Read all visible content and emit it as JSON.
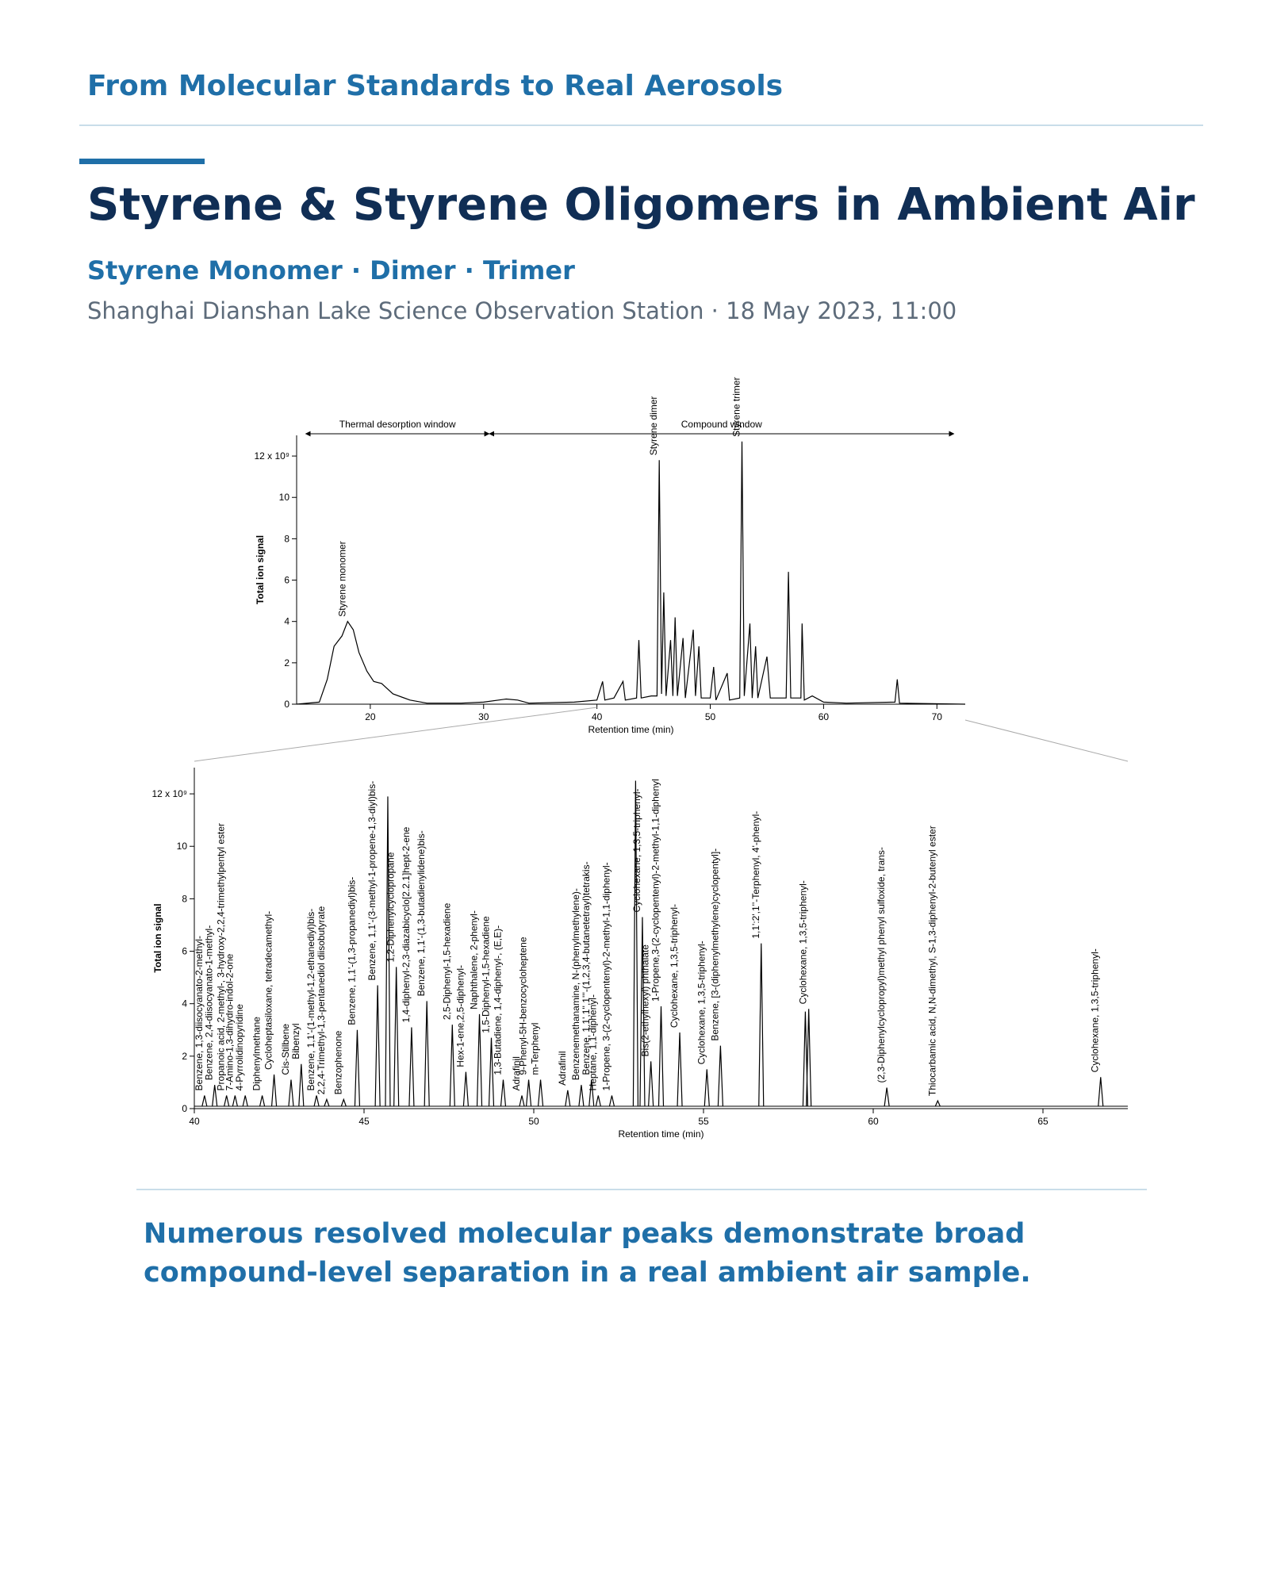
{
  "header": {
    "kicker": "From Molecular Standards to Real Aerosols",
    "title": "Styrene & Styrene Oligomers in Ambient Air",
    "subtitle": "Styrene Monomer · Dimer · Trimer",
    "station": "Shanghai Dianshan Lake Science Observation Station · 18 May 2023, 11:00"
  },
  "chart_data": [
    {
      "type": "line",
      "ylabel": "Total ion signal",
      "xlabel": "Retention time (min)",
      "color": "#000000",
      "xlim": [
        13.5,
        72.5
      ],
      "xticks": [
        20,
        30,
        40,
        50,
        60,
        70
      ],
      "ylim": [
        0,
        13
      ],
      "yticks": [
        0,
        2,
        4,
        6,
        8,
        10,
        {
          "value": 12,
          "label": "12 x 10⁹"
        }
      ],
      "windows": [
        {
          "text": "Thermal desorption window",
          "from": 14.3,
          "to": 30.5
        },
        {
          "text": "Compound window",
          "from": 30.5,
          "to": 71.5
        }
      ],
      "annotations": [
        {
          "text": "Styrene monomer",
          "x": 18,
          "y": 4.0
        },
        {
          "text": "Styrene dimer",
          "x": 45.5,
          "y": 11.8
        },
        {
          "text": "Styrene trimer",
          "x": 52.8,
          "y": 12.7
        }
      ],
      "x": [
        13.5,
        15.5,
        16.2,
        16.8,
        17.5,
        18,
        18.5,
        19,
        19.7,
        20.3,
        21,
        22,
        23.5,
        25,
        28,
        30,
        32,
        33,
        34,
        38,
        40,
        40.5,
        40.7,
        41.5,
        42.3,
        42.5,
        43.5,
        43.7,
        43.9,
        44.8,
        45.3,
        45.5,
        45.7,
        45.9,
        46.1,
        46.5,
        46.7,
        46.9,
        47.1,
        47.6,
        47.8,
        48.5,
        48.7,
        49,
        49.2,
        50,
        50.3,
        50.5,
        51.5,
        51.7,
        52.6,
        52.8,
        53,
        53.5,
        53.7,
        54,
        54.2,
        55,
        55.3,
        56.7,
        56.9,
        57.1,
        58,
        58.1,
        58.3,
        59,
        60,
        62,
        66.3,
        66.5,
        66.7,
        72.5
      ],
      "values": [
        0,
        0.1,
        1.2,
        2.8,
        3.3,
        4.0,
        3.6,
        2.5,
        1.6,
        1.1,
        1.0,
        0.5,
        0.2,
        0.05,
        0.05,
        0.1,
        0.25,
        0.2,
        0.05,
        0.1,
        0.2,
        1.1,
        0.2,
        0.3,
        1.1,
        0.2,
        0.3,
        3.1,
        0.3,
        0.4,
        0.4,
        11.8,
        0.5,
        5.4,
        0.4,
        3.1,
        0.4,
        4.2,
        0.4,
        3.2,
        0.3,
        3.6,
        0.4,
        2.8,
        0.3,
        0.3,
        1.8,
        0.2,
        1.5,
        0.2,
        0.3,
        12.7,
        0.4,
        3.9,
        0.3,
        2.8,
        0.3,
        2.3,
        0.3,
        0.3,
        6.4,
        0.3,
        0.3,
        3.9,
        0.2,
        0.4,
        0.1,
        0.05,
        0.1,
        1.2,
        0.05,
        0
      ]
    },
    {
      "type": "peaks",
      "ylabel": "Total ion signal",
      "xlabel": "Retention time (min)",
      "color": "#000000",
      "xlim": [
        40,
        67.5
      ],
      "xticks": [
        40,
        45,
        50,
        55,
        60,
        65
      ],
      "ylim": [
        0,
        13
      ],
      "yticks": [
        0,
        2,
        4,
        6,
        8,
        10,
        {
          "value": 12,
          "label": "12 x 10⁹"
        }
      ],
      "peaks": [
        {
          "x": 40.3,
          "y": 0.5,
          "label": "Benzene, 1,3-diisocyanato-2-methyl-"
        },
        {
          "x": 40.6,
          "y": 0.9,
          "label": "Benzene, 2,4-diisocyanato-1-methyl-"
        },
        {
          "x": 40.95,
          "y": 0.5,
          "label": "Propanoic acid, 2-methyl-, 3-hydroxy-2,2,4-trimethylpentyl ester"
        },
        {
          "x": 41.2,
          "y": 0.5,
          "label": "7-Amino-1,3-dihydro-indol-2-one"
        },
        {
          "x": 41.5,
          "y": 0.5,
          "label": "4-Pyrrolidinopyridine"
        },
        {
          "x": 42.0,
          "y": 0.5,
          "label": "Diphenylmethane"
        },
        {
          "x": 42.35,
          "y": 1.3,
          "label": "Cycloheptasiloxane, tetradecamethyl-"
        },
        {
          "x": 42.85,
          "y": 1.1,
          "label": "Cis-Stilbene"
        },
        {
          "x": 43.15,
          "y": 1.7,
          "label": "Bibenzyl"
        },
        {
          "x": 43.6,
          "y": 0.5,
          "label": "Benzene, 1,1'-(1-methyl-1,2-ethanediyl)bis-"
        },
        {
          "x": 43.9,
          "y": 0.35,
          "label": "2,2,4-Trimethyl-1,3-pentanediol diisobutyrate"
        },
        {
          "x": 44.4,
          "y": 0.35,
          "label": "Benzophenone"
        },
        {
          "x": 44.8,
          "y": 3.0,
          "label": "Benzene, 1,1'-(1,3-propanediyl)bis-"
        },
        {
          "x": 45.4,
          "y": 4.7,
          "label": "Benzene, 1,1'-(3-methyl-1-propene-1,3-diyl)bis-"
        },
        {
          "x": 45.7,
          "y": 11.9
        },
        {
          "x": 45.95,
          "y": 5.4,
          "label": "1,2-Diphenylcyclopropane"
        },
        {
          "x": 46.4,
          "y": 3.1,
          "label": "1,4-diphenyl-2,3-diazabicyclo[2.2.1]hept-2-ene"
        },
        {
          "x": 46.85,
          "y": 4.1,
          "label": "Benzene, 1,1'-(1,3-butadienylidene)bis-"
        },
        {
          "x": 47.6,
          "y": 3.2,
          "label": "2,5-Diphenyl-1,5-hexadiene"
        },
        {
          "x": 48.0,
          "y": 1.4,
          "label": "Hex-1-ene,2,5-diphenyl-"
        },
        {
          "x": 48.4,
          "y": 3.6,
          "label": "Naphthalene, 2-phenyl-"
        },
        {
          "x": 48.75,
          "y": 2.7,
          "label": "1,5-Diphenyl-1,5-hexadiene"
        },
        {
          "x": 49.1,
          "y": 1.1,
          "label": "1,3-Butadiene, 1,4-diphenyl-, (E,E)-"
        },
        {
          "x": 49.65,
          "y": 0.5,
          "label": "Adrafinil"
        },
        {
          "x": 49.85,
          "y": 1.1,
          "label": "9-Phenyl-5H-benzocycloheptene"
        },
        {
          "x": 50.2,
          "y": 1.1,
          "label": "m-Terphenyl"
        },
        {
          "x": 51.0,
          "y": 0.7,
          "label": "Adrafinil"
        },
        {
          "x": 51.4,
          "y": 0.9,
          "label": "Benzenemethanamine, N-(phenylmethylene)-"
        },
        {
          "x": 51.7,
          "y": 1.1,
          "label": "Benzene, 1,1',1'',1'''-(1,2,3,4-butanetetrayl)tetrakis-"
        },
        {
          "x": 51.9,
          "y": 0.5,
          "label": "Heptane, 1,1-diphenyl-"
        },
        {
          "x": 52.3,
          "y": 0.5,
          "label": "1-Propene, 3-(2-cyclopentenyl)-2-methyl-1,1-diphenyl-"
        },
        {
          "x": 53.0,
          "y": 12.5
        },
        {
          "x": 53.2,
          "y": 7.3,
          "label": "Cyclohexane, 1,3,5-triphenyl-"
        },
        {
          "x": 53.45,
          "y": 1.8,
          "label": "Bis(2-ethylhexyl) phthalate"
        },
        {
          "x": 53.75,
          "y": 3.9,
          "label": "1-Propene,3-(2-cyclopentenyl)-2-methyl-1,1-diphenyl"
        },
        {
          "x": 54.3,
          "y": 2.9,
          "label": "Cyclohexane, 1,3,5-triphenyl-"
        },
        {
          "x": 55.1,
          "y": 1.5,
          "label": "Cyclohexane, 1,3,5-triphenyl-"
        },
        {
          "x": 55.5,
          "y": 2.4,
          "label": "Benzene, [3-(diphenylmethylene)cyclopentyl]-"
        },
        {
          "x": 56.7,
          "y": 6.3,
          "label": "1,1':2',1''-Terphenyl, 4'-phenyl-"
        },
        {
          "x": 58.0,
          "y": 3.7
        },
        {
          "x": 58.1,
          "y": 3.8,
          "label": "Cyclohexane, 1,3,5-triphenyl-"
        },
        {
          "x": 60.4,
          "y": 0.8,
          "label": "(2,3-Diphenylcyclopropyl)methyl phenyl sulfoxide, trans-"
        },
        {
          "x": 61.9,
          "y": 0.3,
          "label": "Thiocarbamic acid, N,N-dimethyl, S-1,3-diphenyl-2-butenyl ester"
        },
        {
          "x": 66.7,
          "y": 1.2,
          "label": "Cyclohexane, 1,3,5-triphenyl-"
        }
      ]
    }
  ],
  "caption": "Numerous resolved molecular peaks demonstrate broad compound-level separation in a real ambient air sample."
}
